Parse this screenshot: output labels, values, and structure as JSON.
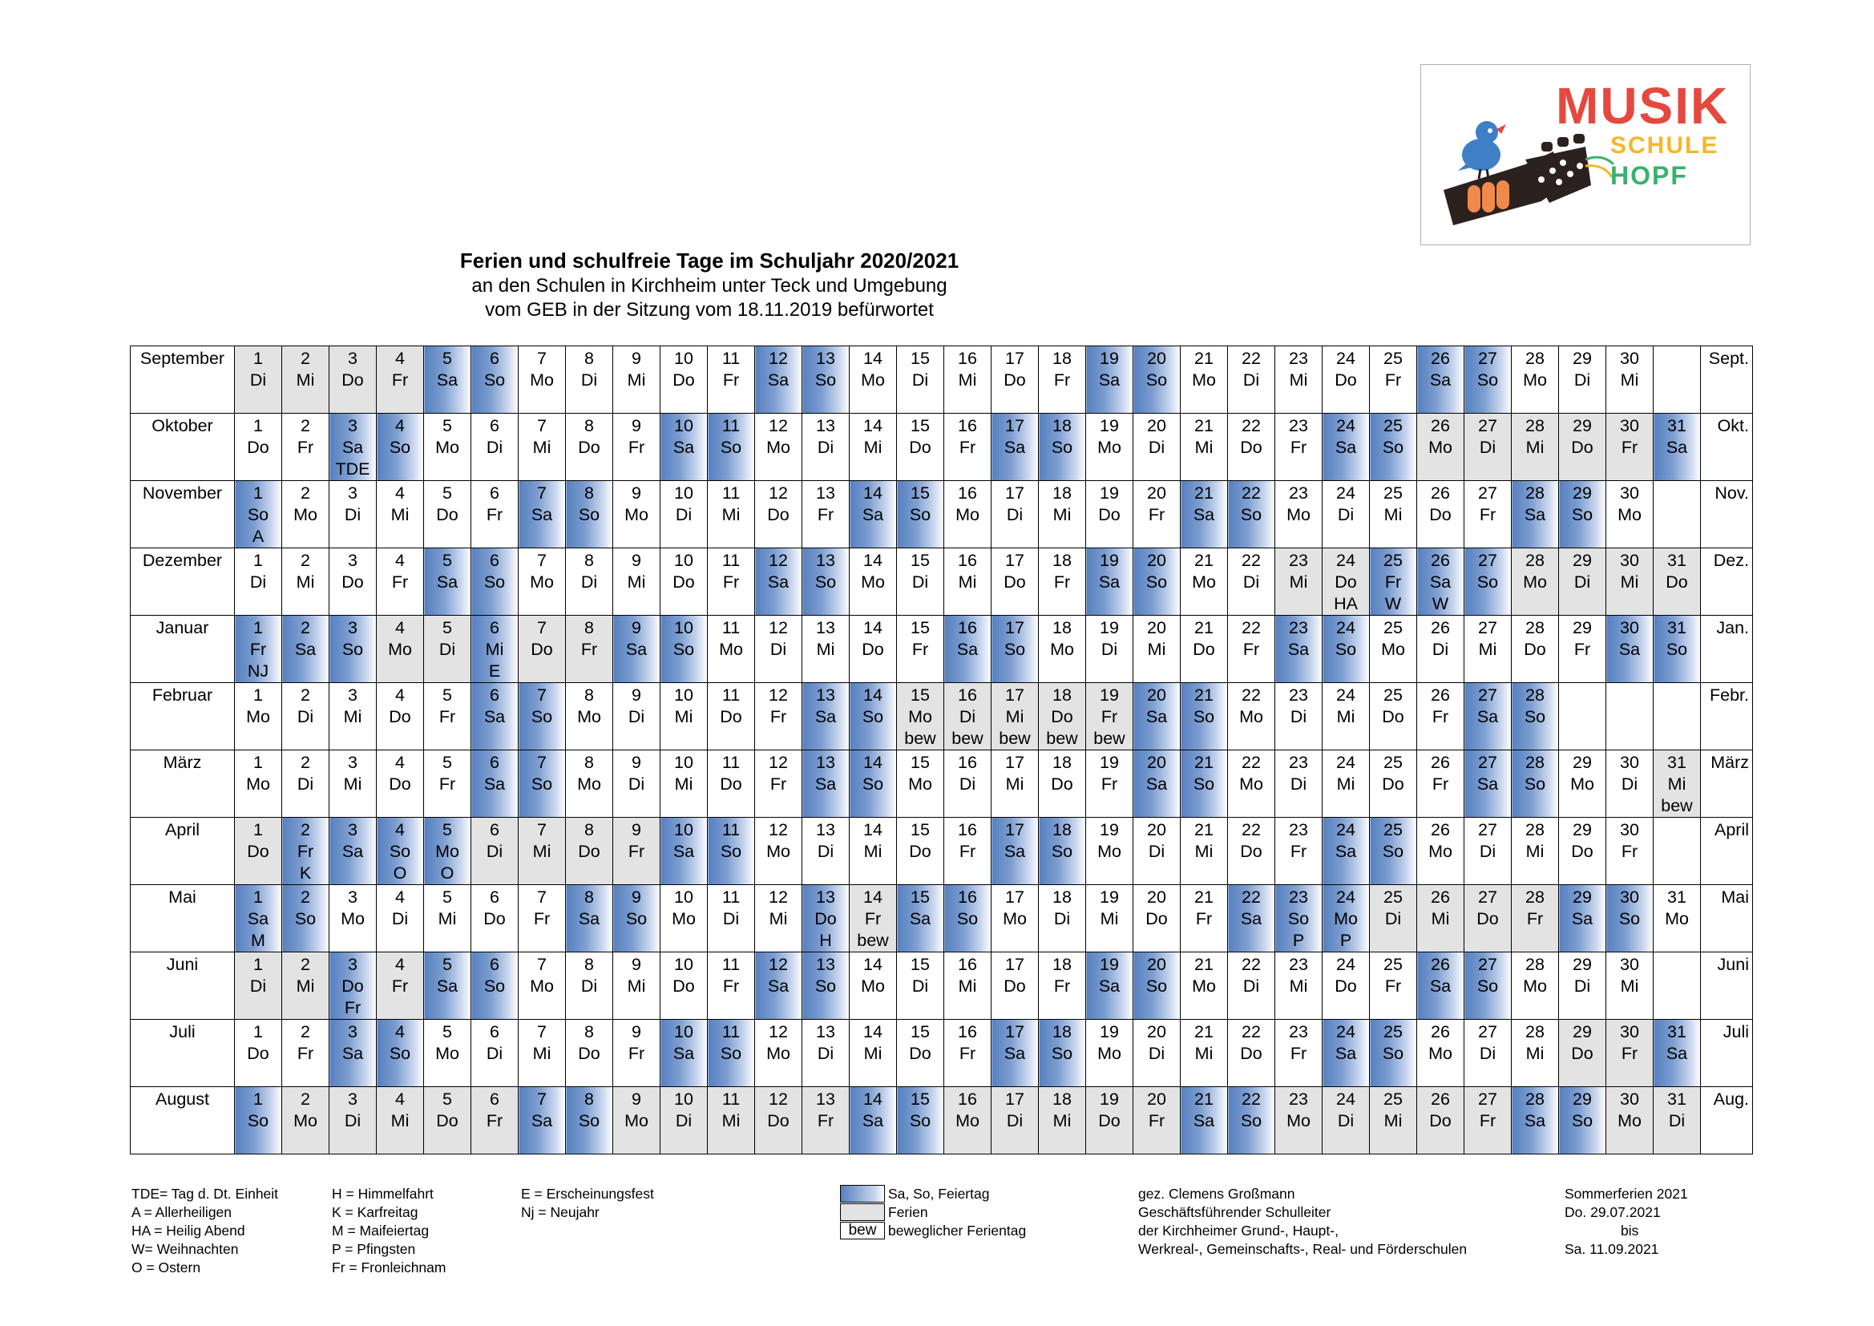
{
  "logo": {
    "word1": "MUSIK",
    "word2": "SCHULE",
    "word3": "HOPF",
    "colors": {
      "red": "#e5483f",
      "yellow": "#f5b72a",
      "green": "#39b26b",
      "blue": "#3f7fc6"
    }
  },
  "header": {
    "title": "Ferien und schulfreie Tage im Schuljahr 2020/2021",
    "subtitle1": "an den Schulen in Kirchheim unter Teck und Umgebung",
    "subtitle2": "vom GEB in der Sitzung vom 18.11.2019 befürwortet"
  },
  "colors": {
    "weekend_blue": "#5680bf",
    "holiday_gray": "#e3e3e3"
  },
  "months": [
    {
      "name": "September",
      "abbr": "Sept.",
      "start": "Di",
      "days": 30,
      "blue": [
        5,
        6,
        12,
        13,
        19,
        20,
        26,
        27
      ],
      "gray": [
        1,
        2,
        3,
        4
      ],
      "notes": {}
    },
    {
      "name": "Oktober",
      "abbr": "Okt.",
      "start": "Do",
      "days": 31,
      "blue": [
        3,
        4,
        10,
        11,
        17,
        18,
        24,
        25,
        31
      ],
      "gray": [
        26,
        27,
        28,
        29,
        30
      ],
      "notes": {
        "3": "TDE"
      }
    },
    {
      "name": "November",
      "abbr": "Nov.",
      "start": "So",
      "days": 30,
      "blue": [
        1,
        7,
        8,
        14,
        15,
        21,
        22,
        28,
        29
      ],
      "gray": [],
      "notes": {
        "1": "A"
      }
    },
    {
      "name": "Dezember",
      "abbr": "Dez.",
      "start": "Di",
      "days": 31,
      "blue": [
        5,
        6,
        12,
        13,
        19,
        20,
        25,
        26,
        27
      ],
      "gray": [
        23,
        24,
        28,
        29,
        30,
        31
      ],
      "notes": {
        "24": "HA",
        "25": "W",
        "26": "W"
      }
    },
    {
      "name": "Januar",
      "abbr": "Jan.",
      "start": "Fr",
      "days": 31,
      "blue": [
        1,
        2,
        3,
        6,
        9,
        10,
        16,
        17,
        23,
        24,
        30,
        31
      ],
      "gray": [
        4,
        5,
        7,
        8
      ],
      "notes": {
        "1": "NJ",
        "6": "E"
      }
    },
    {
      "name": "Februar",
      "abbr": "Febr.",
      "start": "Mo",
      "days": 28,
      "blue": [
        6,
        7,
        13,
        14,
        20,
        21,
        27,
        28
      ],
      "gray": [
        15,
        16,
        17,
        18,
        19
      ],
      "notes": {
        "15": "bew",
        "16": "bew",
        "17": "bew",
        "18": "bew",
        "19": "bew"
      }
    },
    {
      "name": "März",
      "abbr": "März",
      "start": "Mo",
      "days": 31,
      "blue": [
        6,
        7,
        13,
        14,
        20,
        21,
        27,
        28
      ],
      "gray": [
        31
      ],
      "notes": {
        "31": "bew"
      }
    },
    {
      "name": "April",
      "abbr": "April",
      "start": "Do",
      "days": 30,
      "blue": [
        2,
        3,
        4,
        5,
        10,
        11,
        17,
        18,
        24,
        25
      ],
      "gray": [
        1,
        6,
        7,
        8,
        9
      ],
      "notes": {
        "2": "K",
        "4": "O",
        "5": "O"
      }
    },
    {
      "name": "Mai",
      "abbr": "Mai",
      "start": "Sa",
      "days": 31,
      "blue": [
        1,
        2,
        8,
        9,
        13,
        15,
        16,
        22,
        23,
        24,
        29,
        30
      ],
      "gray": [
        14,
        25,
        26,
        27,
        28
      ],
      "notes": {
        "1": "M",
        "13": "H",
        "14": "bew",
        "23": "P",
        "24": "P"
      }
    },
    {
      "name": "Juni",
      "abbr": "Juni",
      "start": "Di",
      "days": 30,
      "blue": [
        3,
        5,
        6,
        12,
        13,
        19,
        20,
        26,
        27
      ],
      "gray": [
        1,
        2,
        4
      ],
      "notes": {
        "3": "Fr"
      }
    },
    {
      "name": "Juli",
      "abbr": "Juli",
      "start": "Do",
      "days": 31,
      "blue": [
        3,
        4,
        10,
        11,
        17,
        18,
        24,
        25,
        31
      ],
      "gray": [
        29,
        30
      ],
      "notes": {}
    },
    {
      "name": "August",
      "abbr": "Aug.",
      "start": "So",
      "days": 31,
      "blue": [
        1,
        7,
        8,
        14,
        15,
        21,
        22,
        28,
        29
      ],
      "gray": [
        2,
        3,
        4,
        5,
        6,
        9,
        10,
        11,
        12,
        13,
        16,
        17,
        18,
        19,
        20,
        23,
        24,
        25,
        26,
        27,
        30,
        31
      ],
      "notes": {}
    }
  ],
  "legend": {
    "col1": [
      "TDE= Tag d. Dt. Einheit",
      "A = Allerheiligen",
      "HA = Heilig Abend",
      "W= Weihnachten",
      "O = Ostern"
    ],
    "col2": [
      "H = Himmelfahrt",
      "K  = Karfreitag",
      "M = Maifeiertag",
      "P  = Pfingsten",
      "Fr = Fronleichnam"
    ],
    "col3": [
      "E = Erscheinungsfest",
      "Nj = Neujahr"
    ],
    "swatch_labels": [
      "Sa, So, Feiertag",
      "Ferien",
      "beweglicher Ferientag"
    ],
    "swatch_bew": "bew",
    "signature": [
      "gez. Clemens Großmann",
      "Geschäftsführender Schulleiter",
      "der Kirchheimer Grund-, Haupt-,",
      "Werkreal-, Gemeinschafts-, Real- und Förderschulen"
    ],
    "summer": [
      "Sommerferien 2021",
      "Do. 29.07.2021",
      "bis",
      "Sa. 11.09.2021"
    ]
  }
}
